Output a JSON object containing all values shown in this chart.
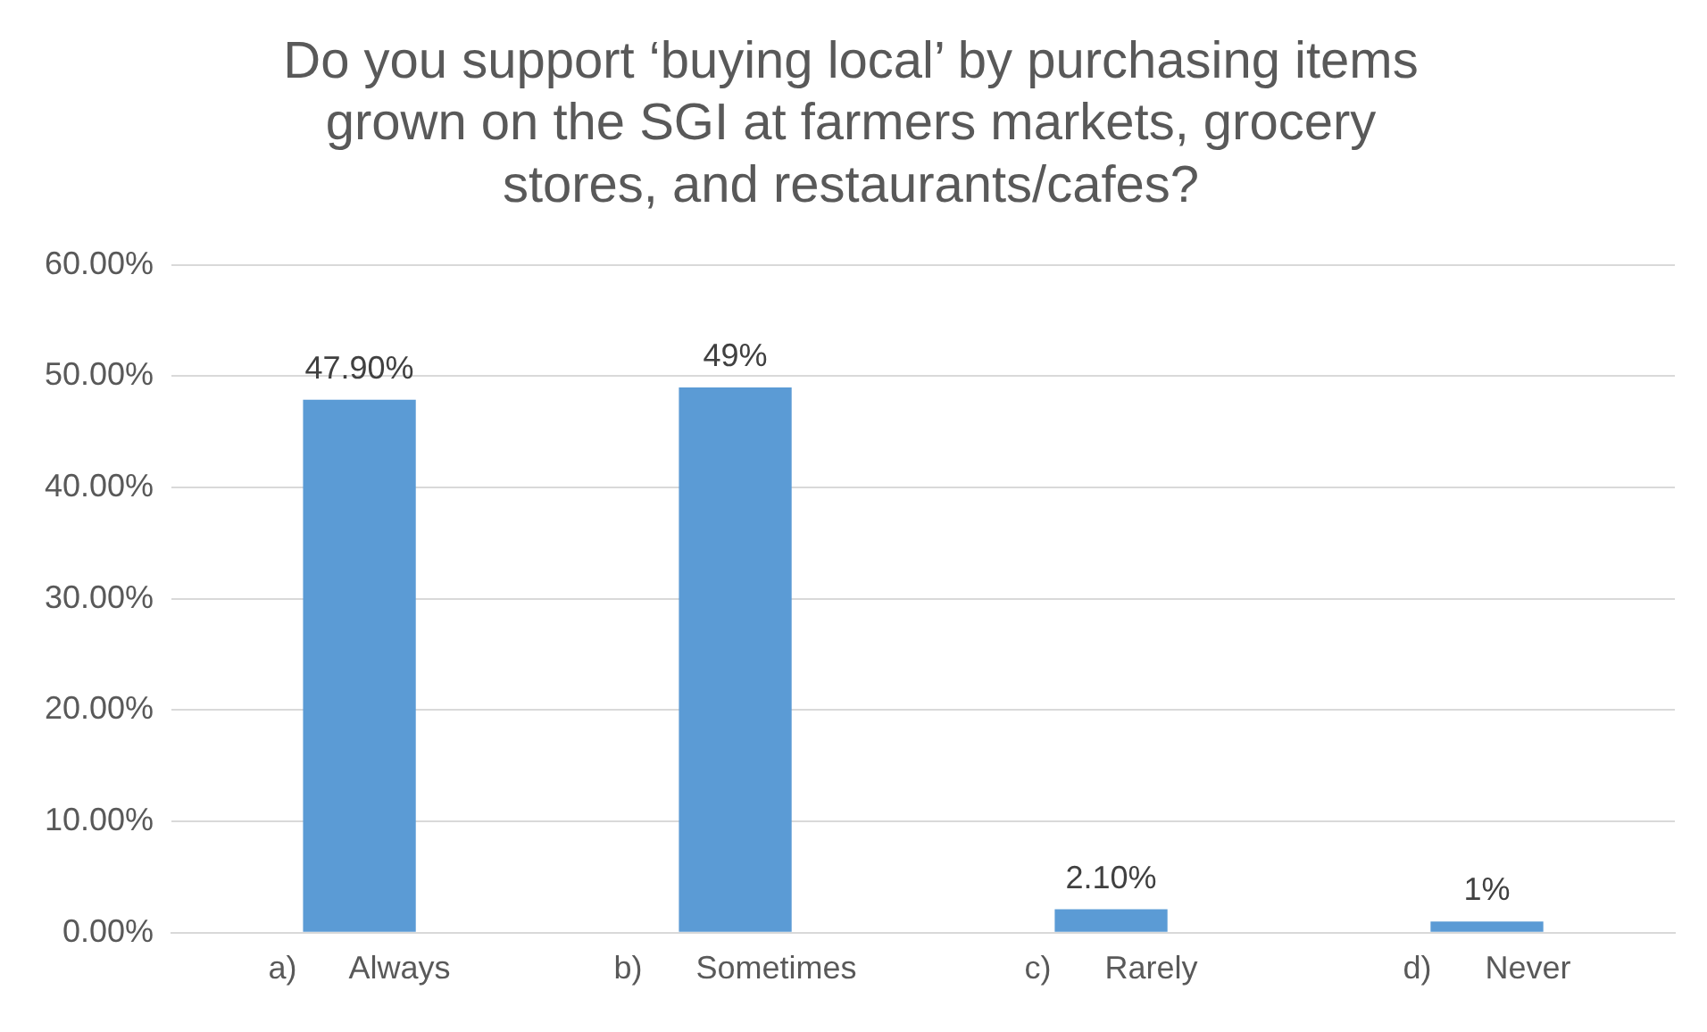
{
  "chart_data": {
    "type": "bar",
    "title": "Do you support ‘buying local’ by purchasing items grown on the SGI at farmers markets, grocery stores, and restaurants/cafes?",
    "categories": [
      "a)      Always",
      "b)      Sometimes",
      "c)      Rarely",
      "d)      Never"
    ],
    "values": [
      47.9,
      49,
      2.1,
      1
    ],
    "value_labels": [
      "47.90%",
      "49%",
      "2.10%",
      "1%"
    ],
    "color": "#5b9bd5",
    "ylim": [
      0,
      60
    ],
    "yticks": [
      {
        "value": 0,
        "label": "0.00%"
      },
      {
        "value": 10,
        "label": "10.00%"
      },
      {
        "value": 20,
        "label": "20.00%"
      },
      {
        "value": 30,
        "label": "30.00%"
      },
      {
        "value": 40,
        "label": "40.00%"
      },
      {
        "value": 50,
        "label": "50.00%"
      },
      {
        "value": 60,
        "label": "60.00%"
      }
    ],
    "grid": "y",
    "legend": false
  }
}
